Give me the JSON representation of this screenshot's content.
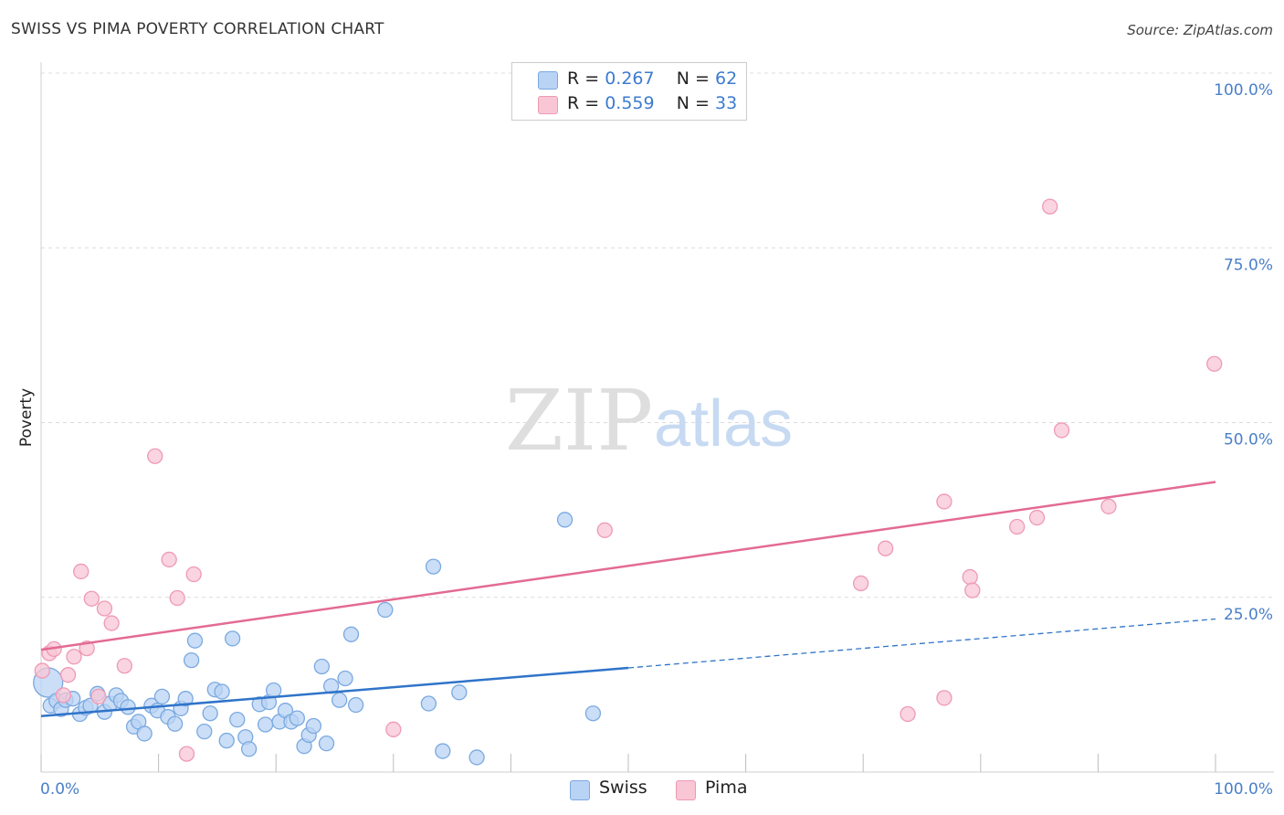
{
  "title": "SWISS VS PIMA POVERTY CORRELATION CHART",
  "source": "Source: ZipAtlas.com",
  "watermark": {
    "zip": "ZIP",
    "atlas": "atlas"
  },
  "legend": {
    "r_label": "R =",
    "n_label": "N =",
    "swiss": {
      "r": "0.267",
      "n": "62"
    },
    "pima": {
      "r": "0.559",
      "n": "33"
    }
  },
  "colors": {
    "swiss_fill": "#b9d3f4",
    "swiss_stroke": "#7aa9e0",
    "swiss_line": "#2f74c9",
    "pima_fill": "#f8c6d5",
    "pima_stroke": "#ee9ab4",
    "pima_line": "#e36a95",
    "tick_label": "#4a7fc8"
  },
  "chart_data": {
    "type": "scatter",
    "title": "SWISS VS PIMA POVERTY CORRELATION CHART",
    "xlabel": "",
    "ylabel": "Poverty",
    "xlim": [
      0,
      100
    ],
    "ylim": [
      0,
      100
    ],
    "x_tick_labels": [
      "0.0%",
      "100.0%"
    ],
    "y_ticks": [
      25,
      50,
      75,
      100
    ],
    "y_tick_labels": [
      "25.0%",
      "50.0%",
      "75.0%",
      "100.0%"
    ],
    "grid": true,
    "legend_position": "bottom",
    "series": [
      {
        "name": "Swiss",
        "r": 0.267,
        "n": 62,
        "trend": {
          "x0": 0,
          "y0": 8.0,
          "x1": 50,
          "y1": 14.9,
          "dashed_to_x": 100,
          "dashed_to_y": 21.9
        },
        "points": [
          {
            "x": 0.6,
            "y": 12.8,
            "big": true
          },
          {
            "x": 0.8,
            "y": 9.5
          },
          {
            "x": 1.3,
            "y": 10.2
          },
          {
            "x": 1.7,
            "y": 9.0
          },
          {
            "x": 2.1,
            "y": 10.3
          },
          {
            "x": 2.7,
            "y": 10.5
          },
          {
            "x": 3.3,
            "y": 8.3
          },
          {
            "x": 3.8,
            "y": 9.2
          },
          {
            "x": 4.2,
            "y": 9.5
          },
          {
            "x": 4.8,
            "y": 11.2
          },
          {
            "x": 5.4,
            "y": 8.6
          },
          {
            "x": 5.9,
            "y": 9.8
          },
          {
            "x": 6.4,
            "y": 11.0
          },
          {
            "x": 6.8,
            "y": 10.2
          },
          {
            "x": 7.4,
            "y": 9.3
          },
          {
            "x": 7.9,
            "y": 6.5
          },
          {
            "x": 8.3,
            "y": 7.2
          },
          {
            "x": 8.8,
            "y": 5.5
          },
          {
            "x": 9.4,
            "y": 9.5
          },
          {
            "x": 9.9,
            "y": 8.8
          },
          {
            "x": 10.3,
            "y": 10.8
          },
          {
            "x": 10.8,
            "y": 7.9
          },
          {
            "x": 11.4,
            "y": 6.9
          },
          {
            "x": 11.9,
            "y": 9.1
          },
          {
            "x": 12.3,
            "y": 10.5
          },
          {
            "x": 12.8,
            "y": 16.0
          },
          {
            "x": 13.1,
            "y": 18.8
          },
          {
            "x": 13.9,
            "y": 5.8
          },
          {
            "x": 14.4,
            "y": 8.4
          },
          {
            "x": 14.8,
            "y": 11.8
          },
          {
            "x": 15.4,
            "y": 11.5
          },
          {
            "x": 15.8,
            "y": 4.5
          },
          {
            "x": 16.3,
            "y": 19.1
          },
          {
            "x": 16.7,
            "y": 7.5
          },
          {
            "x": 17.4,
            "y": 5.0
          },
          {
            "x": 17.7,
            "y": 3.3
          },
          {
            "x": 18.6,
            "y": 9.7
          },
          {
            "x": 19.1,
            "y": 6.8
          },
          {
            "x": 19.4,
            "y": 10.0
          },
          {
            "x": 19.8,
            "y": 11.7
          },
          {
            "x": 20.3,
            "y": 7.2
          },
          {
            "x": 20.8,
            "y": 8.8
          },
          {
            "x": 21.3,
            "y": 7.2
          },
          {
            "x": 21.8,
            "y": 7.7
          },
          {
            "x": 22.4,
            "y": 3.7
          },
          {
            "x": 22.8,
            "y": 5.3
          },
          {
            "x": 23.2,
            "y": 6.6
          },
          {
            "x": 23.9,
            "y": 15.1
          },
          {
            "x": 24.3,
            "y": 4.1
          },
          {
            "x": 24.7,
            "y": 12.3
          },
          {
            "x": 25.4,
            "y": 10.3
          },
          {
            "x": 25.9,
            "y": 13.4
          },
          {
            "x": 26.4,
            "y": 19.7
          },
          {
            "x": 26.8,
            "y": 9.6
          },
          {
            "x": 29.3,
            "y": 23.2
          },
          {
            "x": 33.0,
            "y": 9.8
          },
          {
            "x": 33.4,
            "y": 29.4
          },
          {
            "x": 34.2,
            "y": 3.0
          },
          {
            "x": 35.6,
            "y": 11.4
          },
          {
            "x": 37.1,
            "y": 2.1
          },
          {
            "x": 44.6,
            "y": 36.1
          },
          {
            "x": 47.0,
            "y": 8.4
          }
        ]
      },
      {
        "name": "Pima",
        "r": 0.559,
        "n": 33,
        "trend": {
          "x0": 0,
          "y0": 17.5,
          "x1": 100,
          "y1": 41.5
        },
        "points": [
          {
            "x": 0.1,
            "y": 14.5
          },
          {
            "x": 0.7,
            "y": 17.0
          },
          {
            "x": 1.1,
            "y": 17.6
          },
          {
            "x": 1.9,
            "y": 11.0
          },
          {
            "x": 2.3,
            "y": 13.9
          },
          {
            "x": 2.8,
            "y": 16.5
          },
          {
            "x": 3.4,
            "y": 28.7
          },
          {
            "x": 3.9,
            "y": 17.7
          },
          {
            "x": 4.3,
            "y": 24.8
          },
          {
            "x": 4.9,
            "y": 10.8
          },
          {
            "x": 5.4,
            "y": 23.4
          },
          {
            "x": 6.0,
            "y": 21.3
          },
          {
            "x": 7.1,
            "y": 15.2
          },
          {
            "x": 9.7,
            "y": 45.2
          },
          {
            "x": 10.9,
            "y": 30.4
          },
          {
            "x": 11.6,
            "y": 24.9
          },
          {
            "x": 12.4,
            "y": 2.6
          },
          {
            "x": 13.0,
            "y": 28.3
          },
          {
            "x": 30.0,
            "y": 6.1
          },
          {
            "x": 48.0,
            "y": 34.6
          },
          {
            "x": 69.8,
            "y": 27.0
          },
          {
            "x": 71.9,
            "y": 32.0
          },
          {
            "x": 73.8,
            "y": 8.3
          },
          {
            "x": 76.9,
            "y": 38.7
          },
          {
            "x": 76.9,
            "y": 10.6
          },
          {
            "x": 79.1,
            "y": 27.9
          },
          {
            "x": 79.3,
            "y": 26.0
          },
          {
            "x": 83.1,
            "y": 35.1
          },
          {
            "x": 84.8,
            "y": 36.4
          },
          {
            "x": 85.9,
            "y": 80.9
          },
          {
            "x": 86.9,
            "y": 48.9
          },
          {
            "x": 90.9,
            "y": 38.0
          },
          {
            "x": 99.9,
            "y": 58.4
          }
        ]
      }
    ]
  }
}
